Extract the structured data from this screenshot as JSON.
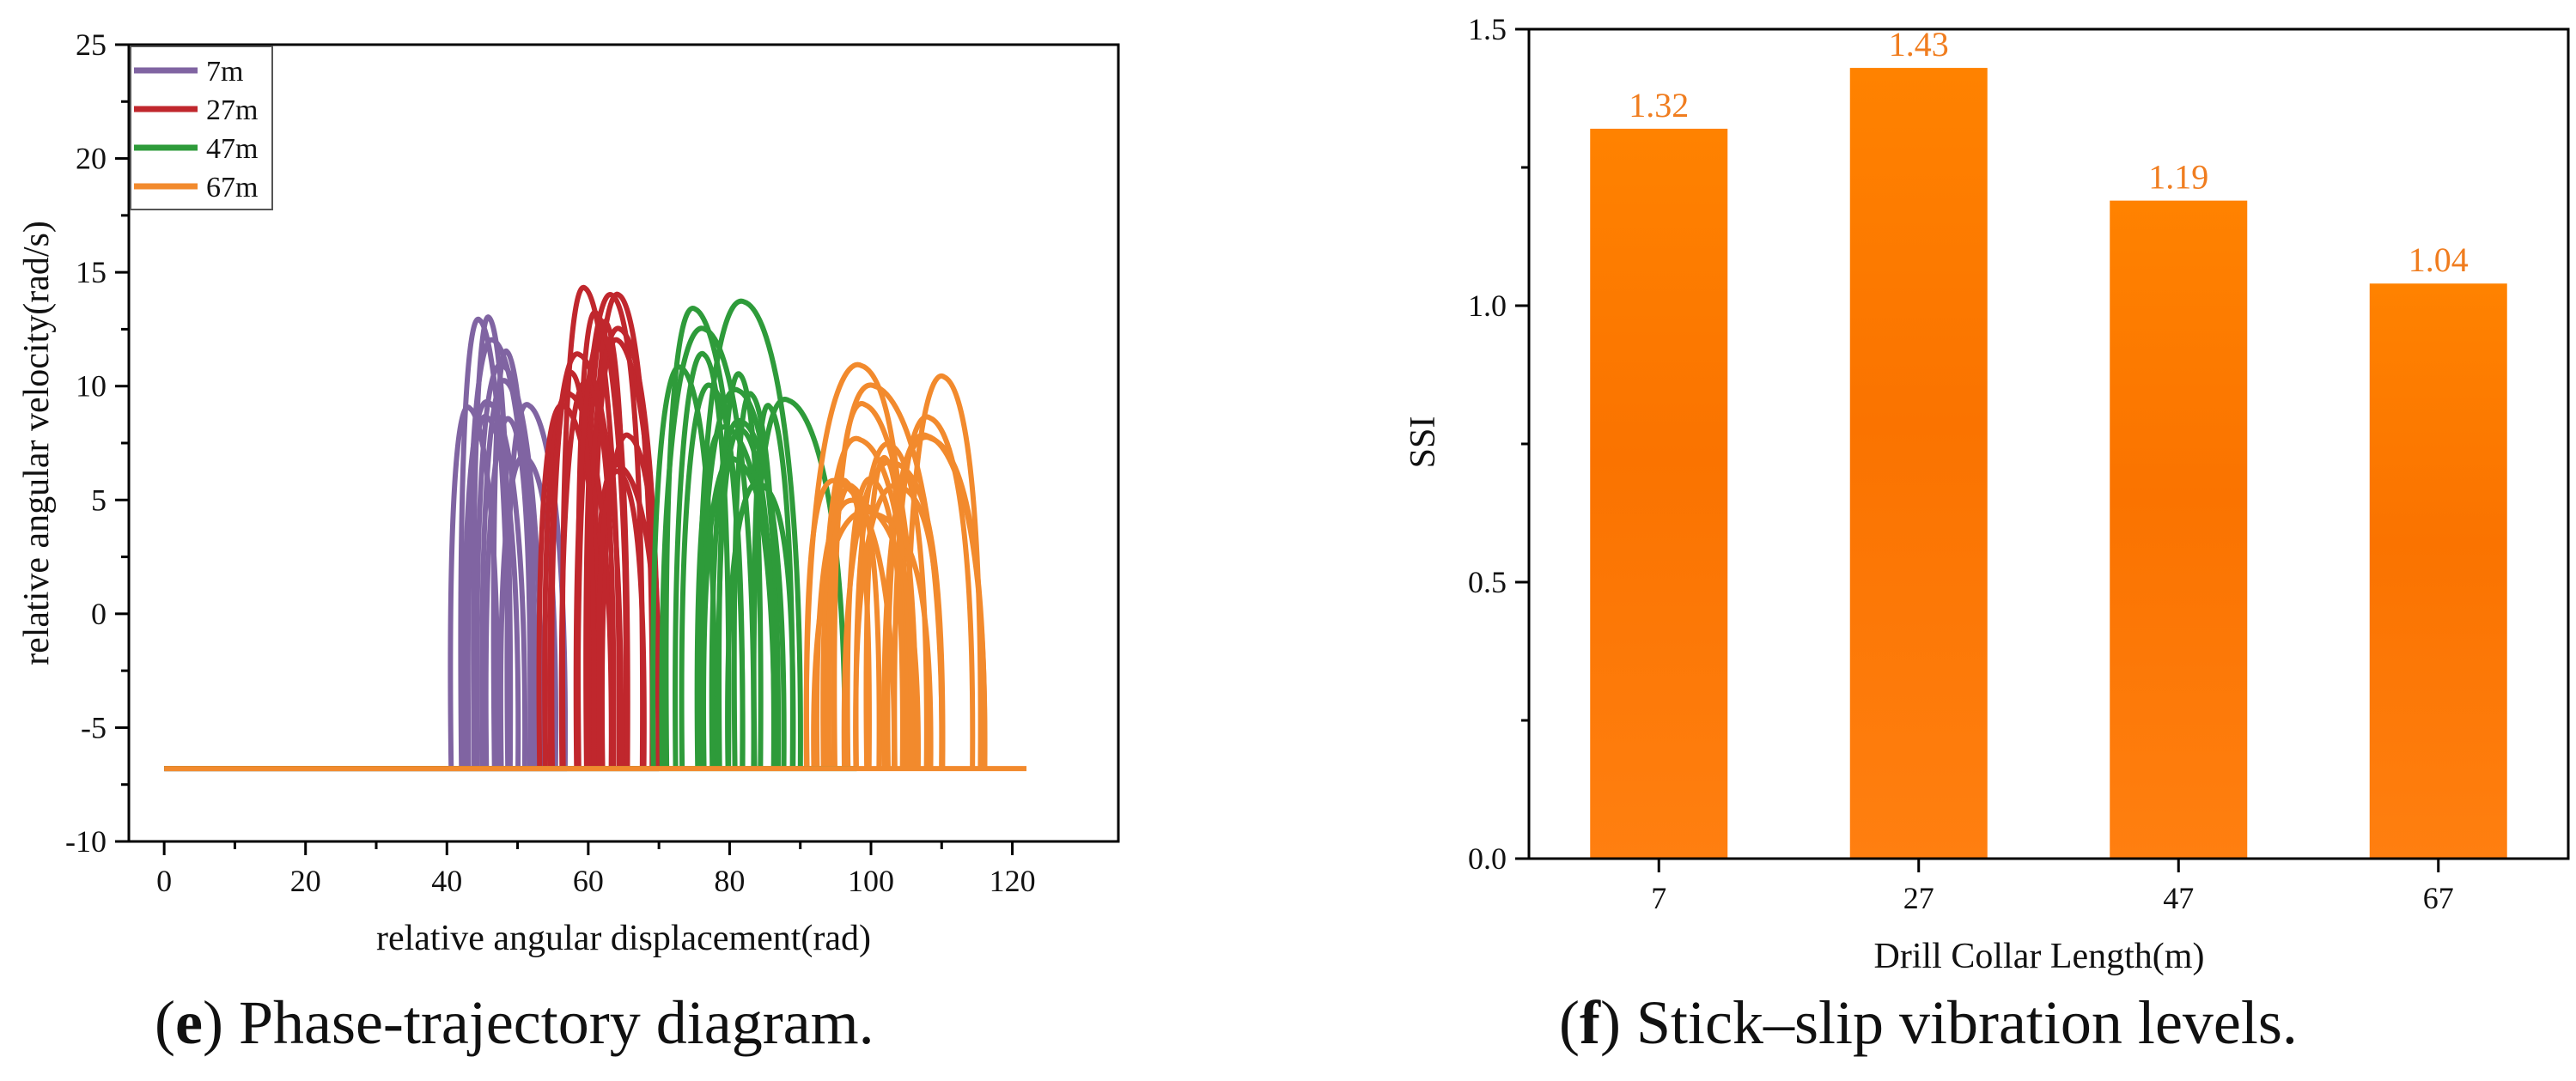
{
  "chart_data": [
    {
      "type": "line",
      "panel_letter": "e",
      "caption": "Phase-trajectory diagram.",
      "xlabel": "relative angular displacement(rad)",
      "ylabel": "relative angular velocity(rad/s)",
      "xlim": [
        -5,
        135
      ],
      "ylim": [
        -10,
        25
      ],
      "xticks": [
        0,
        20,
        40,
        60,
        80,
        100,
        120
      ],
      "yticks": [
        -10,
        -5,
        0,
        5,
        10,
        15,
        20,
        25
      ],
      "stick_velocity": -6.8,
      "legend_position": "top-left",
      "series": [
        {
          "name": "7m",
          "color": "#8064A2",
          "x_range": [
            40,
            57
          ],
          "peaks": [
            13,
            12.9,
            11.5,
            12,
            10.9,
            10.2
          ],
          "loops": 12
        },
        {
          "name": "27m",
          "color": "#C0272D",
          "x_range": [
            53,
            70
          ],
          "peaks": [
            14.3,
            14.0,
            12.8,
            13.2,
            12.0,
            6.5
          ],
          "loops": 16
        },
        {
          "name": "47m",
          "color": "#2E9B3A",
          "x_range": [
            69,
            98
          ],
          "peaks": [
            13.7,
            12.5,
            10.8,
            10.5,
            10.0,
            9.8
          ],
          "loops": 16
        },
        {
          "name": "67m",
          "color": "#F28A2D",
          "x_range": [
            89,
            122
          ],
          "peaks": [
            10.9,
            10.4,
            10.0,
            8.6,
            7.8,
            6.8
          ],
          "loops": 18
        }
      ]
    },
    {
      "type": "bar",
      "panel_letter": "f",
      "caption": "Stick–slip vibration levels.",
      "categories": [
        "7",
        "27",
        "47",
        "67"
      ],
      "values": [
        1.32,
        1.43,
        1.19,
        1.04
      ],
      "value_labels": [
        "1.32",
        "1.43",
        "1.19",
        "1.04"
      ],
      "xlabel": "Drill Collar Length(m)",
      "ylabel": "SSI",
      "ylim": [
        0,
        1.5
      ],
      "yticks": [
        "0.0",
        "0.5",
        "1.0",
        "1.5"
      ],
      "bar_color": "#FF8000",
      "label_color": "#F07D1F"
    }
  ]
}
